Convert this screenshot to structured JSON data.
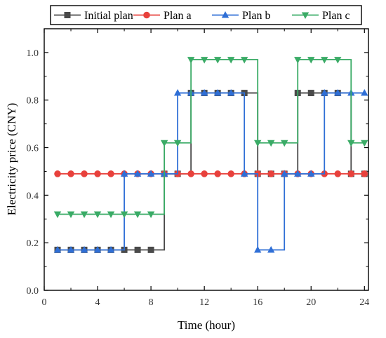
{
  "chart_data": {
    "type": "line",
    "step": "post",
    "xlabel": "Time (hour)",
    "ylabel": "Electricity price (CNY)",
    "xlim": [
      0,
      24.3
    ],
    "ylim": [
      0,
      1.1
    ],
    "xticks": [
      "0",
      "4",
      "8",
      "12",
      "16",
      "20",
      "24"
    ],
    "yticks": [
      "0.0",
      "0.2",
      "0.4",
      "0.6",
      "0.8",
      "1.0"
    ],
    "legend_position": "top",
    "grid": false,
    "x": [
      1,
      2,
      3,
      4,
      5,
      6,
      7,
      8,
      9,
      10,
      11,
      12,
      13,
      14,
      15,
      16,
      17,
      18,
      19,
      20,
      21,
      22,
      23,
      24
    ],
    "series": [
      {
        "name": "Initial plan",
        "color": "#4a4a4a",
        "marker": "square",
        "values": [
          0.17,
          0.17,
          0.17,
          0.17,
          0.17,
          0.17,
          0.17,
          0.17,
          0.49,
          0.49,
          0.83,
          0.83,
          0.83,
          0.83,
          0.83,
          0.49,
          0.49,
          0.49,
          0.83,
          0.83,
          0.83,
          0.83,
          0.49,
          0.49
        ]
      },
      {
        "name": "Plan a",
        "color": "#e8413c",
        "marker": "circle",
        "values": [
          0.49,
          0.49,
          0.49,
          0.49,
          0.49,
          0.49,
          0.49,
          0.49,
          0.49,
          0.49,
          0.49,
          0.49,
          0.49,
          0.49,
          0.49,
          0.49,
          0.49,
          0.49,
          0.49,
          0.49,
          0.49,
          0.49,
          0.49,
          0.49
        ]
      },
      {
        "name": "Plan b",
        "color": "#2f6fd6",
        "marker": "triangle-up",
        "values": [
          0.17,
          0.17,
          0.17,
          0.17,
          0.17,
          0.49,
          0.49,
          0.49,
          0.49,
          0.83,
          0.83,
          0.83,
          0.83,
          0.83,
          0.49,
          0.17,
          0.17,
          0.49,
          0.49,
          0.49,
          0.83,
          0.83,
          0.83,
          0.83
        ]
      },
      {
        "name": "Plan c",
        "color": "#3aab66",
        "marker": "triangle-down",
        "values": [
          0.32,
          0.32,
          0.32,
          0.32,
          0.32,
          0.32,
          0.32,
          0.32,
          0.62,
          0.62,
          0.97,
          0.97,
          0.97,
          0.97,
          0.97,
          0.62,
          0.62,
          0.62,
          0.97,
          0.97,
          0.97,
          0.97,
          0.62,
          0.62
        ]
      }
    ]
  }
}
